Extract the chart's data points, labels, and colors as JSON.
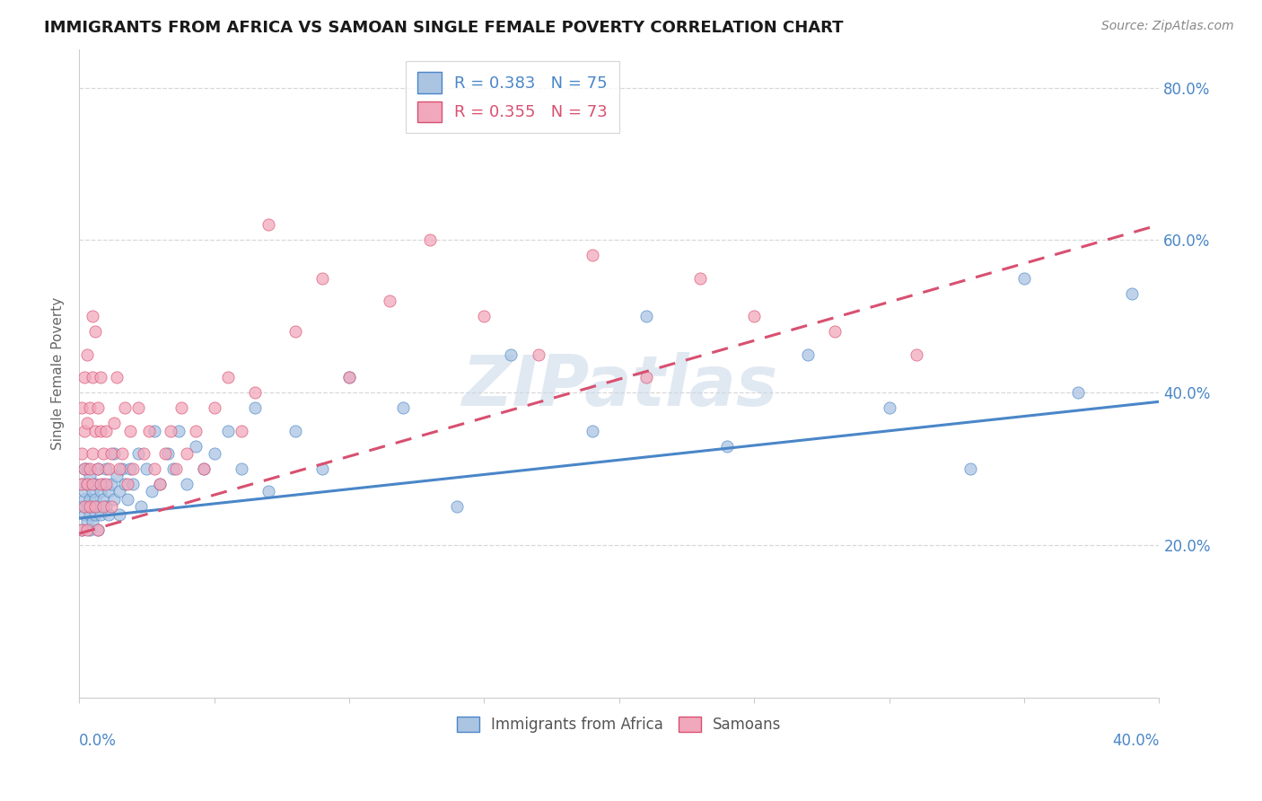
{
  "title": "IMMIGRANTS FROM AFRICA VS SAMOAN SINGLE FEMALE POVERTY CORRELATION CHART",
  "source": "Source: ZipAtlas.com",
  "ylabel": "Single Female Poverty",
  "legend_africa": "Immigrants from Africa",
  "legend_samoans": "Samoans",
  "r_africa": 0.383,
  "n_africa": 75,
  "r_samoans": 0.355,
  "n_samoans": 73,
  "color_africa": "#aac4e2",
  "color_samoans": "#f2a8bc",
  "line_color_africa": "#4a86c8",
  "line_color_samoans": "#d85070",
  "watermark": "ZIPatlas",
  "background_color": "#ffffff",
  "grid_color": "#d8d8d8",
  "xlim": [
    0.0,
    0.4
  ],
  "ylim": [
    0.0,
    0.85
  ],
  "ytick_labels": [
    "20.0%",
    "40.0%",
    "60.0%",
    "80.0%"
  ],
  "ytick_vals": [
    0.2,
    0.4,
    0.6,
    0.8
  ],
  "africa_x": [
    0.001,
    0.001,
    0.001,
    0.002,
    0.002,
    0.002,
    0.002,
    0.003,
    0.003,
    0.003,
    0.003,
    0.004,
    0.004,
    0.004,
    0.004,
    0.005,
    0.005,
    0.005,
    0.006,
    0.006,
    0.006,
    0.007,
    0.007,
    0.007,
    0.008,
    0.008,
    0.009,
    0.009,
    0.01,
    0.01,
    0.011,
    0.011,
    0.012,
    0.013,
    0.013,
    0.014,
    0.015,
    0.015,
    0.016,
    0.017,
    0.018,
    0.019,
    0.02,
    0.022,
    0.023,
    0.025,
    0.027,
    0.028,
    0.03,
    0.033,
    0.035,
    0.037,
    0.04,
    0.043,
    0.046,
    0.05,
    0.055,
    0.06,
    0.065,
    0.07,
    0.08,
    0.09,
    0.1,
    0.12,
    0.14,
    0.16,
    0.19,
    0.21,
    0.24,
    0.27,
    0.3,
    0.33,
    0.35,
    0.37,
    0.39
  ],
  "africa_y": [
    0.25,
    0.28,
    0.22,
    0.26,
    0.3,
    0.24,
    0.27,
    0.23,
    0.28,
    0.25,
    0.3,
    0.22,
    0.26,
    0.24,
    0.29,
    0.25,
    0.27,
    0.23,
    0.26,
    0.28,
    0.24,
    0.25,
    0.3,
    0.22,
    0.27,
    0.24,
    0.26,
    0.28,
    0.25,
    0.3,
    0.27,
    0.24,
    0.28,
    0.26,
    0.32,
    0.29,
    0.27,
    0.24,
    0.3,
    0.28,
    0.26,
    0.3,
    0.28,
    0.32,
    0.25,
    0.3,
    0.27,
    0.35,
    0.28,
    0.32,
    0.3,
    0.35,
    0.28,
    0.33,
    0.3,
    0.32,
    0.35,
    0.3,
    0.38,
    0.27,
    0.35,
    0.3,
    0.42,
    0.38,
    0.25,
    0.45,
    0.35,
    0.5,
    0.33,
    0.45,
    0.38,
    0.3,
    0.55,
    0.4,
    0.53
  ],
  "samoans_x": [
    0.001,
    0.001,
    0.001,
    0.001,
    0.002,
    0.002,
    0.002,
    0.002,
    0.003,
    0.003,
    0.003,
    0.003,
    0.004,
    0.004,
    0.004,
    0.005,
    0.005,
    0.005,
    0.005,
    0.006,
    0.006,
    0.006,
    0.007,
    0.007,
    0.007,
    0.008,
    0.008,
    0.008,
    0.009,
    0.009,
    0.01,
    0.01,
    0.011,
    0.012,
    0.012,
    0.013,
    0.014,
    0.015,
    0.016,
    0.017,
    0.018,
    0.019,
    0.02,
    0.022,
    0.024,
    0.026,
    0.028,
    0.03,
    0.032,
    0.034,
    0.036,
    0.038,
    0.04,
    0.043,
    0.046,
    0.05,
    0.055,
    0.06,
    0.065,
    0.07,
    0.08,
    0.09,
    0.1,
    0.115,
    0.13,
    0.15,
    0.17,
    0.19,
    0.21,
    0.23,
    0.25,
    0.28,
    0.31
  ],
  "samoans_y": [
    0.28,
    0.32,
    0.22,
    0.38,
    0.35,
    0.25,
    0.42,
    0.3,
    0.28,
    0.36,
    0.45,
    0.22,
    0.3,
    0.38,
    0.25,
    0.32,
    0.42,
    0.28,
    0.5,
    0.35,
    0.25,
    0.48,
    0.3,
    0.38,
    0.22,
    0.42,
    0.28,
    0.35,
    0.32,
    0.25,
    0.28,
    0.35,
    0.3,
    0.32,
    0.25,
    0.36,
    0.42,
    0.3,
    0.32,
    0.38,
    0.28,
    0.35,
    0.3,
    0.38,
    0.32,
    0.35,
    0.3,
    0.28,
    0.32,
    0.35,
    0.3,
    0.38,
    0.32,
    0.35,
    0.3,
    0.38,
    0.42,
    0.35,
    0.4,
    0.62,
    0.48,
    0.55,
    0.42,
    0.52,
    0.6,
    0.5,
    0.45,
    0.58,
    0.42,
    0.55,
    0.5,
    0.48,
    0.45
  ],
  "trend_africa_x0": 0.0,
  "trend_africa_y0": 0.235,
  "trend_africa_x1": 0.4,
  "trend_africa_y1": 0.388,
  "trend_samoans_x0": 0.0,
  "trend_samoans_y0": 0.215,
  "trend_samoans_x1": 0.4,
  "trend_samoans_y1": 0.62
}
